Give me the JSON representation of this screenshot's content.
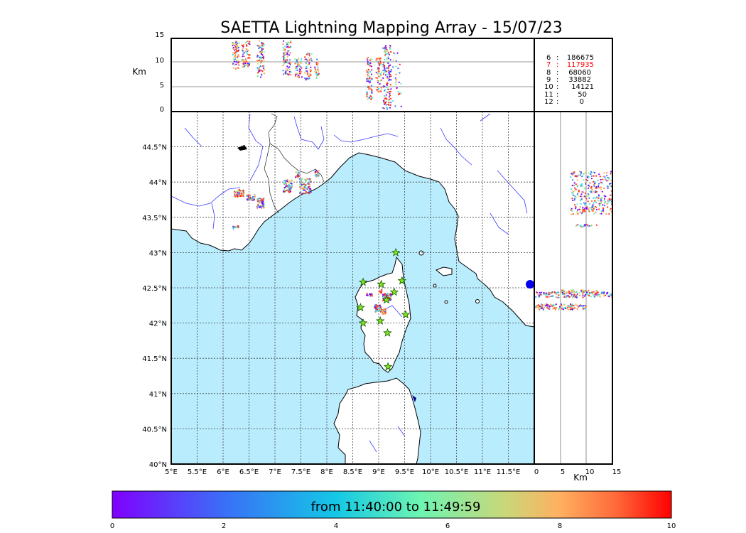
{
  "title": "SAETTA Lightning Mapping Array - 15/07/23",
  "top_panel": {
    "ylabel": "Km",
    "yticks": [
      "15",
      "10",
      "5",
      "0"
    ],
    "stats": [
      {
        "n": "6",
        "count": "186675",
        "color": "#000000"
      },
      {
        "n": "7",
        "count": "117935",
        "color": "#ff0000"
      },
      {
        "n": "8",
        "count": "68060",
        "color": "#000000"
      },
      {
        "n": "9",
        "count": "33882",
        "color": "#000000"
      },
      {
        "n": "10",
        "count": "14121",
        "color": "#000000"
      },
      {
        "n": "11",
        "count": "50",
        "color": "#000000"
      },
      {
        "n": "12",
        "count": "0",
        "color": "#000000"
      }
    ]
  },
  "map": {
    "lon_ticks": [
      "5°E",
      "5.5°E",
      "6°E",
      "6.5°E",
      "7°E",
      "7.5°E",
      "8°E",
      "8.5°E",
      "9°E",
      "9.5°E",
      "10°E",
      "10.5°E",
      "11°E",
      "11.5°E"
    ],
    "lat_ticks": [
      "44.5°N",
      "44°N",
      "43.5°N",
      "43°N",
      "42.5°N",
      "42°N",
      "41.5°N",
      "41°N",
      "40.5°N",
      "40°N"
    ],
    "lon_range": [
      5,
      12
    ],
    "lat_range": [
      40,
      45
    ],
    "sea_color": "#b9ecfd",
    "stations_lonlat": [
      [
        8.7,
        42.58
      ],
      [
        9.05,
        42.55
      ],
      [
        9.33,
        43.0
      ],
      [
        9.45,
        42.6
      ],
      [
        9.3,
        42.44
      ],
      [
        9.15,
        42.33
      ],
      [
        8.65,
        42.22
      ],
      [
        9.52,
        42.12
      ],
      [
        8.7,
        42.0
      ],
      [
        9.03,
        42.03
      ],
      [
        9.17,
        41.86
      ],
      [
        9.18,
        41.38
      ]
    ]
  },
  "side_panel": {
    "xlabel": "Km",
    "xticks": [
      "0",
      "5",
      "10",
      "15"
    ]
  },
  "colorbar": {
    "label": "from 11:40:00 to 11:49:59",
    "ticks": [
      "0",
      "2",
      "4",
      "6",
      "8",
      "10"
    ],
    "range": [
      0,
      10
    ],
    "colormap": "rainbow"
  }
}
